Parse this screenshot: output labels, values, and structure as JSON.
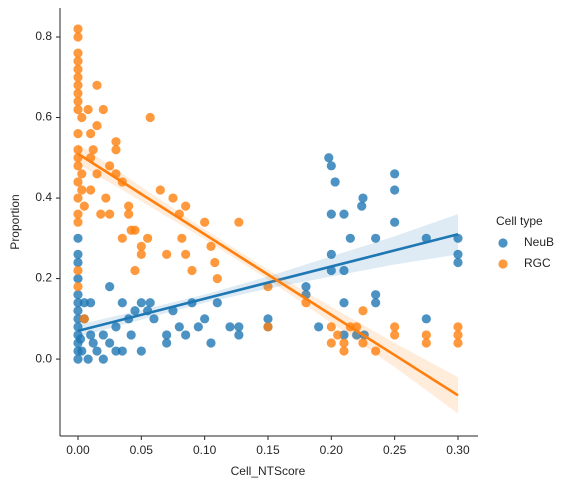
{
  "chart_data": {
    "type": "scatter",
    "xlabel": "Cell_NTScore",
    "ylabel": "Proportion",
    "legend_title": "Cell type",
    "legend": "right",
    "xlim": [
      -0.0142,
      0.3158
    ],
    "ylim": [
      -0.191,
      0.872
    ],
    "xticks": [
      {
        "value": 0,
        "label": "0.00"
      },
      0.05,
      {
        "value": 0.1,
        "label": "0.10"
      },
      0.15,
      {
        "value": 0.2,
        "label": "0.20"
      },
      0.25,
      {
        "value": 0.3,
        "label": "0.30"
      }
    ],
    "yticks": [
      {
        "value": 0,
        "label": "0.0"
      },
      0.2,
      0.4,
      0.6,
      0.8
    ],
    "series": [
      {
        "name": "NeuB",
        "color": "#1f77b4",
        "x": [
          0,
          0,
          0,
          0,
          0,
          0,
          0,
          0,
          0,
          0,
          0,
          0,
          0,
          0.002,
          0.003,
          0.005,
          0.005,
          0.008,
          0.01,
          0.01,
          0.012,
          0.015,
          0.02,
          0.02,
          0.025,
          0.025,
          0.03,
          0.03,
          0.035,
          0.035,
          0.04,
          0.042,
          0.045,
          0.05,
          0.05,
          0.055,
          0.057,
          0.06,
          0.07,
          0.07,
          0.075,
          0.08,
          0.085,
          0.09,
          0.095,
          0.1,
          0.105,
          0.11,
          0.12,
          0.127,
          0.127,
          0.15,
          0.15,
          0.18,
          0.18,
          0.19,
          0.198,
          0.2,
          0.2,
          0.2,
          0.2,
          0.203,
          0.21,
          0.21,
          0.21,
          0.21,
          0.215,
          0.22,
          0.224,
          0.225,
          0.226,
          0.235,
          0.235,
          0.235,
          0.25,
          0.25,
          0.25,
          0.275,
          0.275,
          0.3,
          0.3,
          0.3
        ],
        "values": [
          0.3,
          0.26,
          0.24,
          0.2,
          0.16,
          0.14,
          0.12,
          0.1,
          0.08,
          0.06,
          0.04,
          0.02,
          0,
          0.05,
          0.02,
          0.14,
          0.1,
          0,
          0.14,
          0.06,
          0.04,
          0.02,
          0.06,
          0,
          0.18,
          0.04,
          0.08,
          0.02,
          0.14,
          0.02,
          0.1,
          0.06,
          0.12,
          0.02,
          0.14,
          0.12,
          0.14,
          0.1,
          0.06,
          0.04,
          0.12,
          0.08,
          0.06,
          0.14,
          0.08,
          0.1,
          0.04,
          0.14,
          0.08,
          0.08,
          0.06,
          0.08,
          0.1,
          0.16,
          0.18,
          0.08,
          0.5,
          0.48,
          0.36,
          0.26,
          0.22,
          0.44,
          0.36,
          0.22,
          0.14,
          0.06,
          0.3,
          0.06,
          0.38,
          0.4,
          0.06,
          0.3,
          0.16,
          0.14,
          0.46,
          0.42,
          0.34,
          0.3,
          0.1,
          0.3,
          0.26,
          0.24
        ],
        "fit": {
          "x": [
            0,
            0.3
          ],
          "values": [
            0.07,
            0.31
          ]
        },
        "ci": {
          "x": [
            0,
            0.05,
            0.1,
            0.15,
            0.2,
            0.25,
            0.3
          ],
          "lower": [
            0.055,
            0.098,
            0.14,
            0.175,
            0.205,
            0.235,
            0.26
          ],
          "upper": [
            0.085,
            0.122,
            0.16,
            0.205,
            0.255,
            0.305,
            0.36
          ]
        }
      },
      {
        "name": "RGC",
        "color": "#ff7f0e",
        "x": [
          0,
          0,
          0,
          0,
          0,
          0,
          0,
          0,
          0,
          0,
          0,
          0,
          0,
          0,
          0,
          0,
          0,
          0,
          0,
          0,
          0.003,
          0.003,
          0.003,
          0.005,
          0.005,
          0.008,
          0.01,
          0.01,
          0.01,
          0.012,
          0.015,
          0.015,
          0.015,
          0.018,
          0.02,
          0.022,
          0.025,
          0.025,
          0.03,
          0.03,
          0.03,
          0.035,
          0.035,
          0.04,
          0.04,
          0.042,
          0.045,
          0.045,
          0.05,
          0.05,
          0.055,
          0.057,
          0.065,
          0.07,
          0.075,
          0.08,
          0.082,
          0.085,
          0.085,
          0.09,
          0.1,
          0.105,
          0.108,
          0.11,
          0.127,
          0.15,
          0.15,
          0.18,
          0.2,
          0.2,
          0.205,
          0.21,
          0.21,
          0.215,
          0.22,
          0.225,
          0.225,
          0.235,
          0.25,
          0.25,
          0.275,
          0.275,
          0.3,
          0.3,
          0.3
        ],
        "values": [
          0.82,
          0.8,
          0.76,
          0.74,
          0.72,
          0.7,
          0.68,
          0.66,
          0.64,
          0.62,
          0.56,
          0.52,
          0.5,
          0.48,
          0.44,
          0.4,
          0.36,
          0.34,
          0.22,
          0.18,
          0.6,
          0.46,
          0.42,
          0.38,
          0.1,
          0.62,
          0.56,
          0.5,
          0.42,
          0.52,
          0.68,
          0.58,
          0.46,
          0.36,
          0.62,
          0.4,
          0.48,
          0.36,
          0.54,
          0.52,
          0.46,
          0.44,
          0.3,
          0.38,
          0.36,
          0.32,
          0.22,
          0.32,
          0.28,
          0.26,
          0.3,
          0.6,
          0.42,
          0.26,
          0.4,
          0.36,
          0.3,
          0.38,
          0.26,
          0.22,
          0.34,
          0.28,
          0.24,
          0.2,
          0.34,
          0.08,
          0.18,
          0.14,
          0.08,
          0.04,
          0.06,
          0.04,
          0.02,
          0.08,
          0.08,
          0.04,
          0.12,
          0.02,
          0.08,
          0.06,
          0.06,
          0.04,
          0.08,
          0.06,
          0.04
        ],
        "fit": {
          "x": [
            0,
            0.3
          ],
          "values": [
            0.51,
            -0.09
          ]
        },
        "ci": {
          "x": [
            0,
            0.05,
            0.1,
            0.15,
            0.2,
            0.25,
            0.3
          ],
          "lower": [
            0.485,
            0.392,
            0.298,
            0.198,
            0.09,
            -0.02,
            -0.135
          ],
          "upper": [
            0.535,
            0.428,
            0.322,
            0.222,
            0.13,
            0.04,
            -0.045
          ]
        }
      }
    ]
  }
}
